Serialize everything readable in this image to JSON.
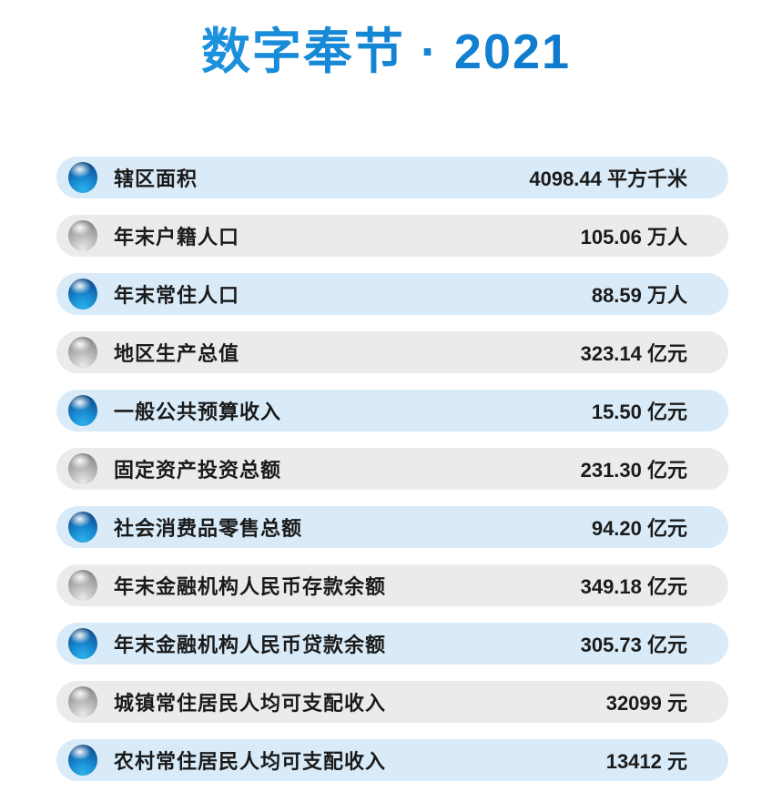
{
  "header": {
    "title": "数字奉节 · 2021"
  },
  "colors": {
    "title_blue_top": "#2aa4e8",
    "title_blue_bottom": "#0b6dc4",
    "row_blue_background": "#d9ebf8",
    "row_gray_background": "#ebebeb",
    "ball_blue": "#1a8ed4",
    "ball_gray": "#9a9a9a",
    "text": "#1a1a1a",
    "page_background": "#ffffff"
  },
  "chart_data": {
    "type": "table",
    "title": "数字奉节 · 2021",
    "legend_position": "none",
    "rows": [
      {
        "label": "辖区面积",
        "value": "4098.44",
        "unit": "平方千米",
        "theme": "blue"
      },
      {
        "label": "年末户籍人口",
        "value": "105.06",
        "unit": "万人",
        "theme": "gray"
      },
      {
        "label": "年末常住人口",
        "value": "88.59",
        "unit": "万人",
        "theme": "blue"
      },
      {
        "label": "地区生产总值",
        "value": "323.14",
        "unit": "亿元",
        "theme": "gray"
      },
      {
        "label": "一般公共预算收入",
        "value": "15.50",
        "unit": "亿元",
        "theme": "blue"
      },
      {
        "label": "固定资产投资总额",
        "value": "231.30",
        "unit": "亿元",
        "theme": "gray"
      },
      {
        "label": "社会消费品零售总额",
        "value": "94.20",
        "unit": "亿元",
        "theme": "blue"
      },
      {
        "label": "年末金融机构人民币存款余额",
        "value": "349.18",
        "unit": "亿元",
        "theme": "gray"
      },
      {
        "label": "年末金融机构人民币贷款余额",
        "value": "305.73",
        "unit": "亿元",
        "theme": "blue"
      },
      {
        "label": "城镇常住居民人均可支配收入",
        "value": "32099",
        "unit": "元",
        "theme": "gray"
      },
      {
        "label": "农村常住居民人均可支配收入",
        "value": "13412",
        "unit": "元",
        "theme": "blue"
      }
    ]
  }
}
